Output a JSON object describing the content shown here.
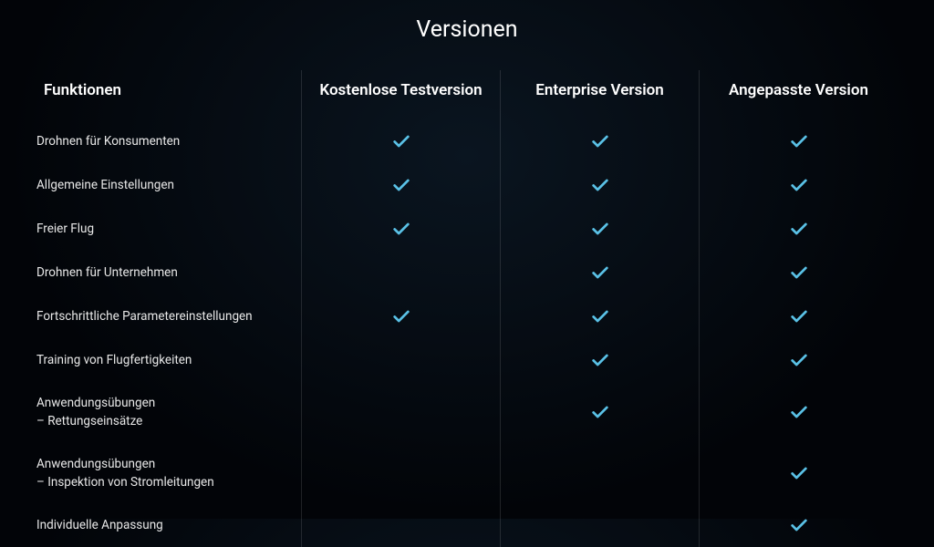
{
  "title": "Versionen",
  "columns": {
    "features": "Funktionen",
    "trial": "Kostenlose Testversion",
    "enterprise": "Enterprise Version",
    "custom": "Angepasste Version"
  },
  "rows": [
    {
      "label": "Drohnen für Konsumenten",
      "trial": true,
      "enterprise": true,
      "custom": true
    },
    {
      "label": "Allgemeine Einstellungen",
      "trial": true,
      "enterprise": true,
      "custom": true
    },
    {
      "label": "Freier Flug",
      "trial": true,
      "enterprise": true,
      "custom": true
    },
    {
      "label": "Drohnen für Unternehmen",
      "trial": false,
      "enterprise": true,
      "custom": true
    },
    {
      "label": "Fortschrittliche Parametereinstellungen",
      "trial": true,
      "enterprise": true,
      "custom": true
    },
    {
      "label": "Training von Flugfertigkeiten",
      "trial": false,
      "enterprise": true,
      "custom": true
    },
    {
      "label": "Anwendungsübungen\n– Rettungseinsätze",
      "trial": false,
      "enterprise": true,
      "custom": true
    },
    {
      "label": "Anwendungsübungen\n– Inspektion von Stromleitungen",
      "trial": false,
      "enterprise": false,
      "custom": true
    },
    {
      "label": "Individuelle Anpassung",
      "trial": false,
      "enterprise": false,
      "custom": true
    }
  ],
  "colors": {
    "check": "#5ac1e6",
    "background_inner": "#0a1520",
    "background_outer": "#020408",
    "text": "#ffffff",
    "divider": "rgba(255,255,255,0.12)"
  }
}
